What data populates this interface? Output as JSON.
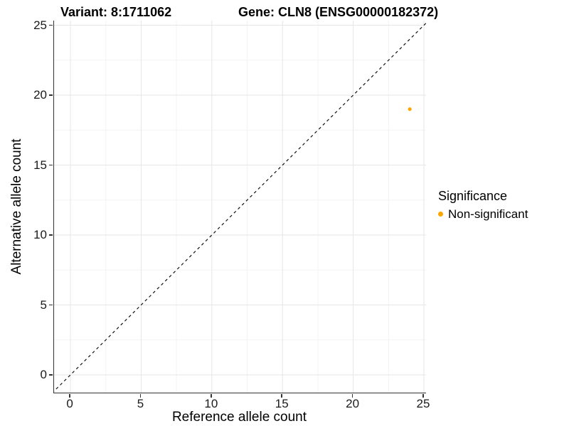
{
  "titles": {
    "variant": "Variant: 8:1711062",
    "gene": "Gene: CLN8 (ENSG00000182372)"
  },
  "legend": {
    "title": "Significance",
    "items": [
      {
        "label": "Non-significant",
        "color": "#FFA500"
      }
    ]
  },
  "chart_data": {
    "type": "scatter",
    "title_left": "Variant: 8:1711062",
    "title_right": "Gene: CLN8 (ENSG00000182372)",
    "xlabel": "Reference allele count",
    "ylabel": "Alternative allele count",
    "xlim": [
      -1.16,
      25.15
    ],
    "ylim": [
      -1.27,
      25.33
    ],
    "x_ticks": [
      0,
      5,
      10,
      15,
      20,
      25
    ],
    "y_ticks": [
      0,
      5,
      10,
      15,
      20,
      25
    ],
    "x_minor_ticks": [
      2.5,
      7.5,
      12.5,
      17.5,
      22.5
    ],
    "y_minor_ticks": [
      2.5,
      7.5,
      12.5,
      17.5,
      22.5
    ],
    "grid": "major+minor",
    "legend_position": "right",
    "series": [
      {
        "name": "Non-significant",
        "color": "#FFA500",
        "points": [
          {
            "x": 24,
            "y": 19
          }
        ]
      }
    ],
    "abline": {
      "slope": 1,
      "intercept": 0,
      "style": "dashed",
      "color": "#111111"
    },
    "colors": {
      "background": "#FFFFFF",
      "grid_major": "#E6E6E6",
      "grid_minor": "#F3F3F3",
      "axis_line": "#333333",
      "tick_mark": "#333333",
      "tick_text": "#1A1A1A"
    }
  }
}
